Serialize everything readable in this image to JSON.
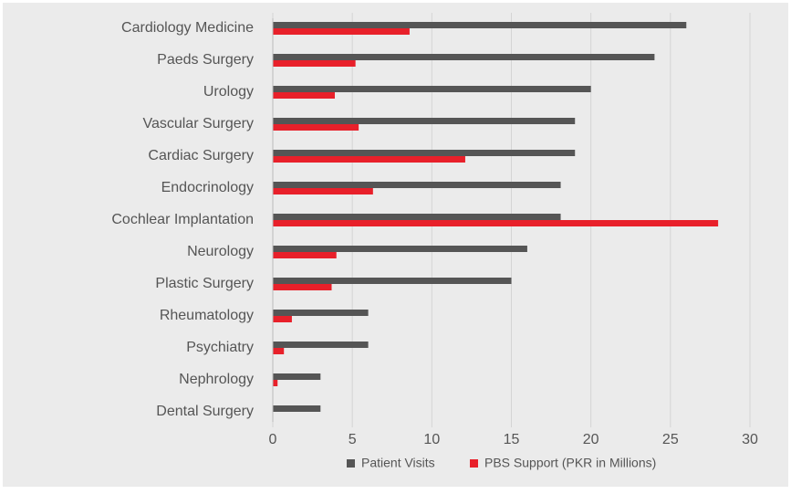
{
  "chart_data": {
    "type": "hbar",
    "categories": [
      "Cardiology Medicine",
      "Paeds Surgery",
      "Urology",
      "Vascular Surgery",
      "Cardiac Surgery",
      "Endocrinology",
      "Cochlear Implantation",
      "Neurology",
      "Plastic Surgery",
      "Rheumatology",
      "Psychiatry",
      "Nephrology",
      "Dental Surgery"
    ],
    "series": [
      {
        "name": "Patient Visits",
        "color": "#555555",
        "values": [
          26,
          24,
          20,
          19,
          19,
          18.1,
          18.1,
          16,
          15,
          6,
          6,
          3,
          3
        ]
      },
      {
        "name": "PBS Support (PKR in Millions)",
        "color": "#e8202a",
        "values": [
          8.6,
          5.2,
          3.9,
          5.4,
          12.1,
          6.3,
          28,
          4,
          3.7,
          1.2,
          0.7,
          0.3,
          0
        ]
      }
    ],
    "xlim": [
      0,
      30
    ],
    "xticks": [
      0,
      5,
      10,
      15,
      20,
      25,
      30
    ],
    "grid": true,
    "legend": "bottom"
  }
}
